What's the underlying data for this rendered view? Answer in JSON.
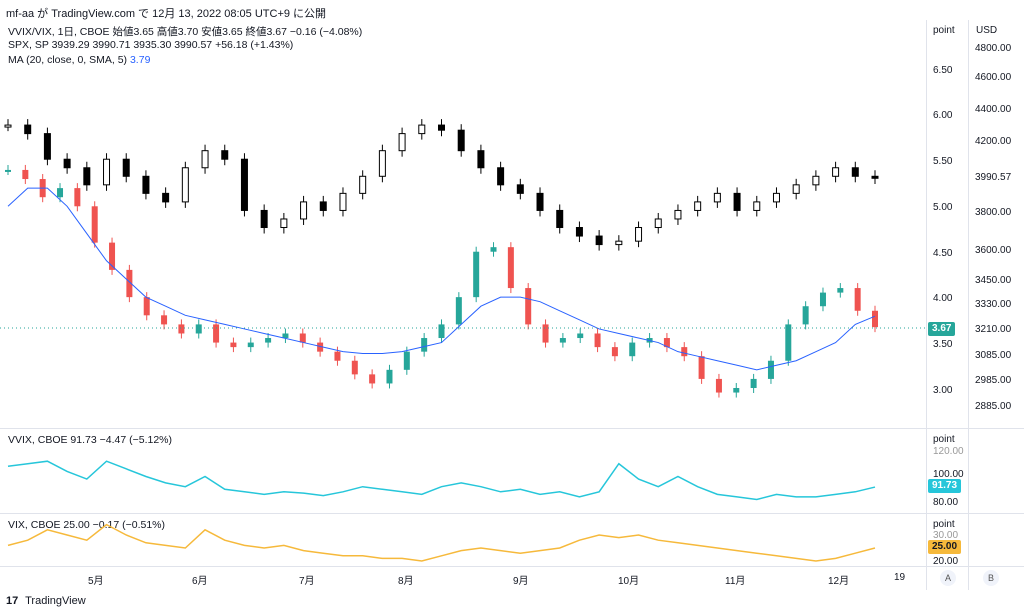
{
  "header": {
    "title": "mf-aa が TradingView.com で 12月 13, 2022 08:05 UTC+9 に公開"
  },
  "main_pane": {
    "legend_line1": "VVIX/VIX, 1日, CBOE  始値3.65  高値3.70  安値3.65  終値3.67  −0.16 (−4.08%)",
    "legend_line2": "SPX, SP  3939.29  3990.71  3935.30  3990.57  +56.18 (+1.43%)",
    "legend_line3_label": "MA (20, close, 0, SMA, 5)",
    "legend_line3_value": "3.79",
    "left_axis_head": "point",
    "right_axis_head": "USD",
    "left_ticks": [
      "6.50",
      "6.00",
      "5.50",
      "5.00",
      "4.50",
      "4.00",
      "3.50",
      "3.00"
    ],
    "right_ticks": [
      "4800.00",
      "4600.00",
      "4400.00",
      "4200.00",
      "3990.57",
      "3800.00",
      "3600.00",
      "3450.00",
      "3330.00",
      "3210.00",
      "3085.00",
      "2985.00",
      "2885.00"
    ],
    "last_value_tag": "3.67"
  },
  "vvix_pane": {
    "legend": "VVIX, CBOE  91.73  −4.47 (−5.12%)",
    "axis_head": "point",
    "ticks": [
      "120.00",
      "100.00",
      "80.00"
    ],
    "last_value_tag": "91.73"
  },
  "vix_pane": {
    "legend": "VIX, CBOE  25.00  −0.17 (−0.51%)",
    "axis_head": "point",
    "ticks": [
      "30.00",
      "20.00"
    ],
    "last_value_tag": "25.00"
  },
  "x_axis": {
    "labels": [
      "5月",
      "6月",
      "7月",
      "8月",
      "9月",
      "10月",
      "11月",
      "12月",
      "19"
    ]
  },
  "buttons": {
    "a": "A",
    "b": "B"
  },
  "footer": {
    "brand": "TradingView",
    "logo": "17"
  },
  "colors": {
    "up": "#26a69a",
    "down": "#ef5350",
    "ma": "#2962ff",
    "vvix": "#26c6da",
    "vix": "#f6b93b",
    "spx": "#000000"
  },
  "chart_data": [
    {
      "type": "line",
      "title": "",
      "series": [
        {
          "name": "VVIX/VIX",
          "values": [
            5.4,
            5.3,
            5.1,
            5.2,
            5.0,
            4.6,
            4.3,
            4.0,
            3.8,
            3.7,
            3.6,
            3.7,
            3.5,
            3.45,
            3.5,
            3.55,
            3.6,
            3.5,
            3.4,
            3.3,
            3.15,
            3.05,
            3.2,
            3.4,
            3.55,
            3.7,
            4.0,
            4.5,
            4.55,
            4.1,
            3.7,
            3.5,
            3.55,
            3.6,
            3.45,
            3.35,
            3.5,
            3.55,
            3.45,
            3.35,
            3.1,
            2.95,
            3.0,
            3.1,
            3.3,
            3.7,
            3.9,
            4.05,
            4.1,
            3.85,
            3.67
          ]
        },
        {
          "name": "MA (20, close, 0, SMA, 5)",
          "values": [
            5.0,
            5.2,
            5.2,
            5.0,
            4.7,
            4.4,
            4.2,
            4.0,
            3.9,
            3.8,
            3.75,
            3.7,
            3.65,
            3.6,
            3.55,
            3.5,
            3.45,
            3.4,
            3.38,
            3.38,
            3.4,
            3.45,
            3.5,
            3.7,
            3.9,
            4.0,
            4.0,
            3.95,
            3.85,
            3.75,
            3.65,
            3.6,
            3.55,
            3.5,
            3.4,
            3.35,
            3.3,
            3.25,
            3.2,
            3.25,
            3.3,
            3.4,
            3.5,
            3.7,
            3.79
          ]
        },
        {
          "name": "SPX",
          "values": [
            4300,
            4250,
            4100,
            4050,
            3950,
            4100,
            4000,
            3900,
            3850,
            4050,
            4150,
            4100,
            3800,
            3700,
            3750,
            3850,
            3800,
            3900,
            4000,
            4150,
            4250,
            4300,
            4270,
            4150,
            4050,
            3950,
            3900,
            3800,
            3700,
            3650,
            3600,
            3620,
            3700,
            3750,
            3800,
            3850,
            3900,
            3800,
            3850,
            3900,
            3950,
            4000,
            4050,
            4000,
            3990
          ]
        }
      ]
    },
    {
      "type": "line",
      "title": "",
      "series": [
        {
          "name": "VVIX",
          "values": [
            108,
            110,
            112,
            104,
            98,
            112,
            106,
            100,
            95,
            92,
            100,
            90,
            88,
            86,
            88,
            87,
            85,
            88,
            92,
            90,
            88,
            86,
            92,
            95,
            92,
            88,
            90,
            86,
            88,
            84,
            88,
            110,
            98,
            92,
            100,
            92,
            86,
            84,
            82,
            86,
            84,
            84,
            86,
            88,
            91.73
          ]
        }
      ]
    },
    {
      "type": "line",
      "title": "",
      "series": [
        {
          "name": "VIX",
          "values": [
            26,
            28,
            32,
            30,
            28,
            34,
            30,
            27,
            26,
            25,
            32,
            28,
            26,
            25,
            26,
            24,
            23,
            22,
            22,
            21,
            21,
            20,
            22,
            24,
            25,
            24,
            23,
            24,
            25,
            28,
            30,
            29,
            30,
            28,
            27,
            26,
            25,
            24,
            23,
            22,
            21,
            20,
            21,
            23,
            25.0
          ]
        }
      ]
    }
  ]
}
